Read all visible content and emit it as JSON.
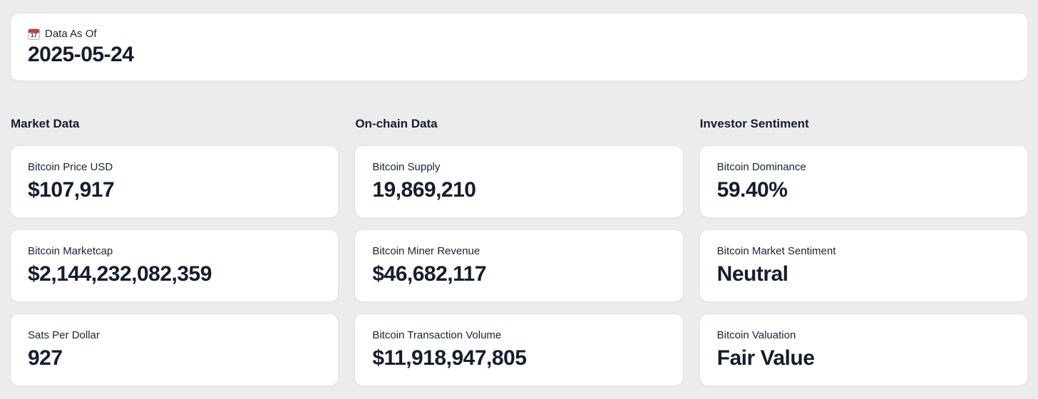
{
  "header_card": {
    "icon": "calendar-icon",
    "icon_day": "17",
    "label": "Data As Of",
    "value": "2025-05-24"
  },
  "columns": [
    {
      "title": "Market Data",
      "cards": [
        {
          "label": "Bitcoin Price USD",
          "value": "$107,917"
        },
        {
          "label": "Bitcoin Marketcap",
          "value": "$2,144,232,082,359"
        },
        {
          "label": "Sats Per Dollar",
          "value": "927"
        }
      ]
    },
    {
      "title": "On-chain Data",
      "cards": [
        {
          "label": "Bitcoin Supply",
          "value": "19,869,210"
        },
        {
          "label": "Bitcoin Miner Revenue",
          "value": "$46,682,117"
        },
        {
          "label": "Bitcoin Transaction Volume",
          "value": "$11,918,947,805"
        }
      ]
    },
    {
      "title": "Investor Sentiment",
      "cards": [
        {
          "label": "Bitcoin Dominance",
          "value": "59.40%"
        },
        {
          "label": "Bitcoin Market Sentiment",
          "value": "Neutral"
        },
        {
          "label": "Bitcoin Valuation",
          "value": "Fair Value"
        }
      ]
    }
  ],
  "colors": {
    "page_bg": "#ececec",
    "card_bg": "#ffffff",
    "card_border": "#e3e3e4",
    "text_dark": "#161d2e",
    "calendar_red": "#c2403a"
  }
}
